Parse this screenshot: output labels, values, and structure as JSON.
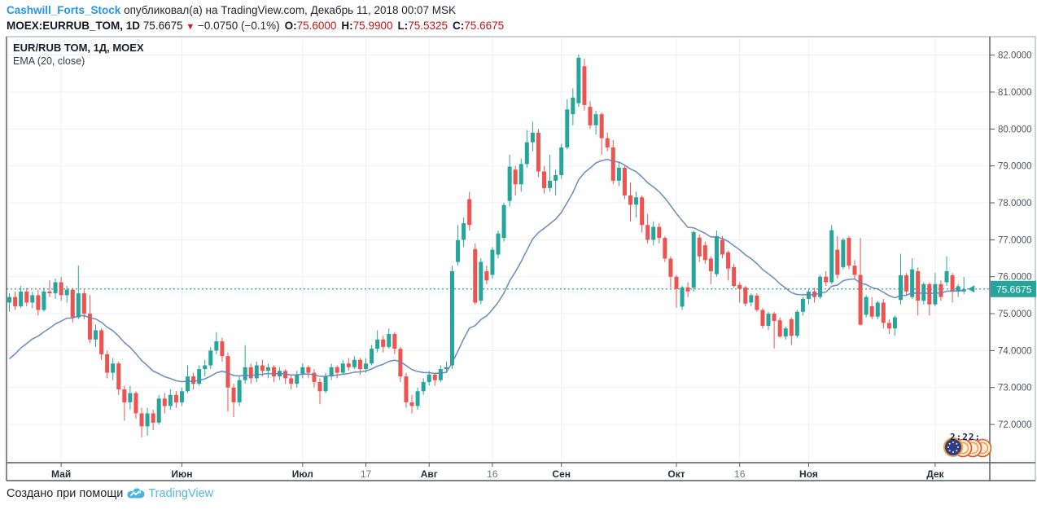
{
  "header": {
    "author": "Cashwill_Forts_Stock",
    "published_text": "опубликовал(а) на TradingView.com, Декабрь 11, 2018 00:07 MSK",
    "symbol": "MOEX:EURRUB_TOM, 1D",
    "last_price": "75.6675",
    "down_arrow": "▼",
    "change": "−0.0750 (−0.1%)",
    "ohlc": [
      {
        "label": "O:",
        "value": "75.6000"
      },
      {
        "label": "H:",
        "value": "75.9900"
      },
      {
        "label": "L:",
        "value": "75.5325"
      },
      {
        "label": "C:",
        "value": "75.6675"
      }
    ]
  },
  "legend": {
    "title": "EUR/RUB ТОМ, 1Д, MOEX",
    "indicator": "EMA (20, close)"
  },
  "watermark_text": "2:22:",
  "footer": {
    "created_with": "Создано при помощи",
    "brand": "TradingView"
  },
  "chart_data": {
    "type": "candlestick",
    "title": "EUR/RUB ТОМ, 1Д, MOEX",
    "symbol": "EUR/RUB TOM",
    "interval": "1D",
    "exchange": "MOEX",
    "indicator": {
      "type": "EMA",
      "period": 20,
      "source": "close",
      "seed": 73.6
    },
    "last_price": 75.6675,
    "price_line": 75.6675,
    "right_margin_slots": 4,
    "y_axis": {
      "max": 82.5,
      "min": 70.965,
      "ticks": [
        82,
        81,
        80,
        79,
        78,
        77,
        76,
        75,
        74,
        73,
        72
      ],
      "decimals": 4
    },
    "x_axis_labels": [
      {
        "label": "Май",
        "index": 9,
        "strong": true
      },
      {
        "label": "Июн",
        "index": 30,
        "strong": true
      },
      {
        "label": "Июл",
        "index": 51,
        "strong": true
      },
      {
        "label": "17",
        "index": 62,
        "strong": false
      },
      {
        "label": "Авг",
        "index": 73,
        "strong": true
      },
      {
        "label": "16",
        "index": 84,
        "strong": false
      },
      {
        "label": "Сен",
        "index": 96,
        "strong": true
      },
      {
        "label": "Окт",
        "index": 116,
        "strong": true
      },
      {
        "label": "16",
        "index": 127,
        "strong": false
      },
      {
        "label": "Ноя",
        "index": 139,
        "strong": true
      },
      {
        "label": "Дек",
        "index": 161,
        "strong": true
      }
    ],
    "colors": {
      "up": "#26a69a",
      "down": "#ef5350",
      "ema": "#6285b8",
      "grid": "#edf0f3",
      "dotted_line": "#26a69a",
      "price_label_bg": "#26a69a",
      "frame": "#9ba0aa",
      "separator": "#555962",
      "axis_text": "#50545e"
    },
    "candles": [
      [
        75.3,
        75.55,
        75.05,
        75.45
      ],
      [
        75.45,
        75.6,
        75.1,
        75.2
      ],
      [
        75.2,
        75.75,
        75.15,
        75.6
      ],
      [
        75.6,
        75.7,
        75.2,
        75.3
      ],
      [
        75.3,
        75.6,
        75.15,
        75.5
      ],
      [
        75.5,
        75.65,
        74.95,
        75.1
      ],
      [
        75.1,
        75.7,
        75.05,
        75.6
      ],
      [
        75.6,
        75.9,
        75.45,
        75.55
      ],
      [
        75.55,
        75.95,
        75.4,
        75.85
      ],
      [
        75.85,
        76.0,
        75.35,
        75.5
      ],
      [
        75.5,
        75.75,
        75.3,
        75.65
      ],
      [
        75.65,
        75.7,
        74.75,
        74.9
      ],
      [
        74.9,
        76.3,
        74.85,
        75.55
      ],
      [
        75.55,
        75.65,
        74.85,
        75.0
      ],
      [
        75.0,
        75.5,
        74.2,
        74.3
      ],
      [
        74.3,
        74.7,
        74.1,
        74.55
      ],
      [
        74.55,
        74.6,
        73.75,
        73.9
      ],
      [
        73.9,
        74.0,
        73.25,
        73.4
      ],
      [
        73.4,
        73.8,
        73.2,
        73.65
      ],
      [
        73.65,
        73.7,
        72.8,
        72.95
      ],
      [
        72.95,
        73.05,
        72.1,
        72.6
      ],
      [
        72.6,
        73.05,
        72.4,
        72.85
      ],
      [
        72.85,
        72.9,
        72.15,
        72.3
      ],
      [
        72.3,
        72.45,
        71.65,
        71.95
      ],
      [
        71.95,
        72.45,
        71.7,
        72.3
      ],
      [
        72.3,
        72.4,
        71.85,
        72.05
      ],
      [
        72.05,
        72.8,
        72.0,
        72.7
      ],
      [
        72.7,
        72.85,
        72.3,
        72.5
      ],
      [
        72.5,
        72.95,
        72.4,
        72.8
      ],
      [
        72.8,
        72.9,
        72.45,
        72.6
      ],
      [
        72.6,
        73.0,
        72.5,
        72.9
      ],
      [
        72.9,
        73.6,
        72.85,
        73.3
      ],
      [
        73.3,
        73.4,
        72.95,
        73.1
      ],
      [
        73.1,
        73.6,
        73.05,
        73.5
      ],
      [
        73.5,
        73.75,
        73.3,
        73.6
      ],
      [
        73.6,
        74.1,
        73.5,
        74.0
      ],
      [
        74.0,
        74.5,
        73.9,
        74.25
      ],
      [
        74.25,
        74.35,
        73.7,
        73.85
      ],
      [
        73.85,
        73.95,
        72.35,
        73.0
      ],
      [
        73.0,
        73.1,
        72.2,
        72.6
      ],
      [
        72.6,
        73.3,
        72.5,
        73.2
      ],
      [
        73.2,
        74.15,
        73.1,
        73.55
      ],
      [
        73.55,
        73.65,
        73.1,
        73.25
      ],
      [
        73.25,
        73.7,
        73.15,
        73.6
      ],
      [
        73.6,
        73.75,
        73.3,
        73.45
      ],
      [
        73.45,
        73.65,
        73.25,
        73.55
      ],
      [
        73.55,
        73.6,
        73.15,
        73.3
      ],
      [
        73.3,
        73.55,
        73.2,
        73.45
      ],
      [
        73.45,
        73.5,
        73.1,
        73.25
      ],
      [
        73.25,
        73.35,
        72.95,
        73.1
      ],
      [
        73.1,
        73.45,
        73.0,
        73.35
      ],
      [
        73.35,
        73.65,
        73.25,
        73.55
      ],
      [
        73.55,
        73.6,
        73.25,
        73.4
      ],
      [
        73.4,
        73.5,
        73.0,
        73.15
      ],
      [
        73.15,
        73.25,
        72.55,
        72.9
      ],
      [
        72.9,
        73.4,
        72.85,
        73.3
      ],
      [
        73.3,
        73.65,
        73.2,
        73.55
      ],
      [
        73.55,
        73.6,
        73.25,
        73.4
      ],
      [
        73.4,
        73.75,
        73.35,
        73.65
      ],
      [
        73.65,
        73.8,
        73.45,
        73.55
      ],
      [
        73.55,
        73.85,
        73.5,
        73.75
      ],
      [
        73.75,
        73.8,
        73.35,
        73.5
      ],
      [
        73.5,
        73.8,
        73.4,
        73.65
      ],
      [
        73.65,
        74.15,
        73.6,
        74.05
      ],
      [
        74.05,
        74.55,
        73.95,
        74.3
      ],
      [
        74.3,
        74.4,
        73.95,
        74.1
      ],
      [
        74.1,
        74.6,
        74.05,
        74.45
      ],
      [
        74.45,
        74.5,
        73.9,
        74.05
      ],
      [
        74.05,
        74.1,
        73.15,
        73.3
      ],
      [
        73.3,
        73.4,
        72.45,
        72.6
      ],
      [
        72.6,
        72.8,
        72.3,
        72.5
      ],
      [
        72.5,
        73.0,
        72.4,
        72.9
      ],
      [
        72.9,
        73.25,
        72.8,
        73.15
      ],
      [
        73.15,
        73.45,
        73.05,
        73.35
      ],
      [
        73.35,
        73.4,
        73.05,
        73.2
      ],
      [
        73.2,
        73.6,
        73.15,
        73.5
      ],
      [
        73.5,
        73.7,
        73.4,
        73.55
      ],
      [
        73.6,
        76.3,
        73.5,
        76.15
      ],
      [
        76.4,
        77.4,
        76.3,
        76.99
      ],
      [
        77.0,
        77.6,
        76.8,
        77.45
      ],
      [
        78.1,
        78.3,
        77.25,
        77.4
      ],
      [
        76.75,
        76.9,
        75.25,
        75.3
      ],
      [
        75.35,
        76.5,
        75.25,
        76.4
      ],
      [
        76.15,
        76.3,
        75.8,
        75.9
      ],
      [
        76.05,
        76.8,
        75.95,
        76.73
      ],
      [
        76.6,
        77.25,
        76.5,
        77.17
      ],
      [
        77.05,
        78.0,
        76.95,
        77.94
      ],
      [
        78.05,
        79.3,
        77.9,
        78.98
      ],
      [
        78.9,
        79.0,
        78.2,
        78.5
      ],
      [
        78.5,
        79.2,
        78.3,
        79.05
      ],
      [
        79.05,
        79.97,
        78.95,
        79.64
      ],
      [
        79.64,
        80.2,
        79.4,
        79.9
      ],
      [
        79.9,
        80.0,
        78.7,
        78.85
      ],
      [
        78.85,
        79.0,
        78.25,
        78.4
      ],
      [
        78.4,
        79.3,
        78.3,
        78.6
      ],
      [
        78.6,
        78.9,
        78.2,
        78.75
      ],
      [
        78.75,
        79.6,
        78.65,
        79.5
      ],
      [
        79.5,
        80.8,
        79.45,
        80.53
      ],
      [
        80.4,
        81.1,
        80.1,
        80.85
      ],
      [
        80.7,
        82.02,
        80.6,
        81.93
      ],
      [
        81.7,
        81.9,
        80.5,
        80.65
      ],
      [
        80.6,
        80.75,
        80.0,
        80.1
      ],
      [
        80.1,
        80.5,
        79.85,
        80.4
      ],
      [
        80.4,
        80.45,
        79.3,
        79.75
      ],
      [
        79.75,
        79.9,
        79.4,
        79.5
      ],
      [
        79.5,
        79.7,
        78.5,
        78.6
      ],
      [
        78.6,
        79.1,
        78.45,
        78.95
      ],
      [
        78.95,
        79.0,
        78.1,
        78.2
      ],
      [
        78.2,
        78.55,
        77.5,
        77.95
      ],
      [
        77.95,
        78.3,
        77.6,
        78.15
      ],
      [
        78.15,
        78.2,
        77.2,
        77.4
      ],
      [
        77.4,
        77.7,
        76.9,
        77.0
      ],
      [
        77.0,
        77.5,
        76.85,
        77.35
      ],
      [
        77.35,
        77.45,
        76.9,
        77.05
      ],
      [
        77.05,
        77.1,
        76.4,
        76.49
      ],
      [
        76.49,
        76.55,
        75.7,
        76.0
      ],
      [
        76.0,
        76.05,
        75.16,
        75.67
      ],
      [
        75.19,
        75.75,
        75.1,
        75.71
      ],
      [
        75.71,
        75.85,
        75.45,
        75.6
      ],
      [
        75.7,
        77.25,
        75.6,
        77.21
      ],
      [
        77.06,
        77.15,
        76.4,
        76.55
      ],
      [
        76.85,
        76.95,
        76.35,
        76.45
      ],
      [
        76.49,
        76.55,
        75.8,
        76.15
      ],
      [
        76.07,
        77.25,
        76.0,
        77.1
      ],
      [
        77.0,
        77.1,
        76.5,
        76.6
      ],
      [
        76.66,
        76.7,
        75.9,
        76.22
      ],
      [
        76.26,
        76.35,
        75.7,
        75.75
      ],
      [
        75.78,
        75.85,
        75.3,
        75.67
      ],
      [
        75.71,
        75.75,
        75.2,
        75.27
      ],
      [
        75.3,
        75.55,
        75.2,
        75.5
      ],
      [
        75.49,
        75.55,
        75.05,
        75.1
      ],
      [
        75.1,
        75.15,
        74.6,
        74.67
      ],
      [
        74.67,
        75.05,
        74.55,
        75.0
      ],
      [
        75.0,
        75.05,
        74.06,
        74.8
      ],
      [
        74.82,
        74.9,
        74.35,
        74.38
      ],
      [
        74.38,
        74.65,
        74.3,
        74.6
      ],
      [
        74.85,
        74.9,
        74.15,
        74.4
      ],
      [
        74.4,
        75.1,
        74.35,
        75.05
      ],
      [
        75.05,
        75.45,
        74.95,
        75.4
      ],
      [
        75.4,
        75.65,
        75.25,
        75.6
      ],
      [
        75.6,
        75.7,
        75.3,
        75.45
      ],
      [
        75.45,
        76.05,
        75.4,
        76.0
      ],
      [
        76.0,
        76.15,
        75.75,
        75.85
      ],
      [
        75.85,
        77.4,
        75.8,
        77.26
      ],
      [
        76.73,
        77.1,
        75.95,
        76.05
      ],
      [
        76.26,
        77.05,
        76.2,
        77.0
      ],
      [
        77.05,
        77.1,
        76.2,
        76.3
      ],
      [
        76.3,
        76.45,
        75.95,
        76.05
      ],
      [
        76.05,
        77.05,
        74.68,
        74.7
      ],
      [
        74.97,
        75.5,
        74.9,
        75.45
      ],
      [
        75.2,
        75.45,
        74.85,
        74.92
      ],
      [
        74.92,
        75.35,
        74.85,
        75.3
      ],
      [
        75.3,
        75.4,
        74.6,
        74.75
      ],
      [
        74.75,
        74.85,
        74.45,
        74.6
      ],
      [
        74.6,
        74.95,
        74.4,
        74.9
      ],
      [
        75.37,
        76.62,
        75.25,
        76.04
      ],
      [
        76.04,
        76.1,
        75.5,
        75.6
      ],
      [
        75.45,
        76.5,
        75.4,
        76.2
      ],
      [
        76.15,
        76.25,
        74.95,
        75.35
      ],
      [
        75.35,
        75.85,
        75.25,
        75.8
      ],
      [
        75.8,
        75.85,
        74.95,
        75.25
      ],
      [
        75.25,
        76.1,
        75.2,
        75.8
      ],
      [
        75.8,
        75.9,
        75.35,
        75.45
      ],
      [
        75.85,
        76.55,
        75.75,
        76.15
      ],
      [
        76.04,
        76.1,
        75.3,
        75.6
      ],
      [
        75.6,
        75.8,
        75.45,
        75.7425
      ],
      [
        75.6,
        75.99,
        75.5325,
        75.6675
      ]
    ]
  }
}
